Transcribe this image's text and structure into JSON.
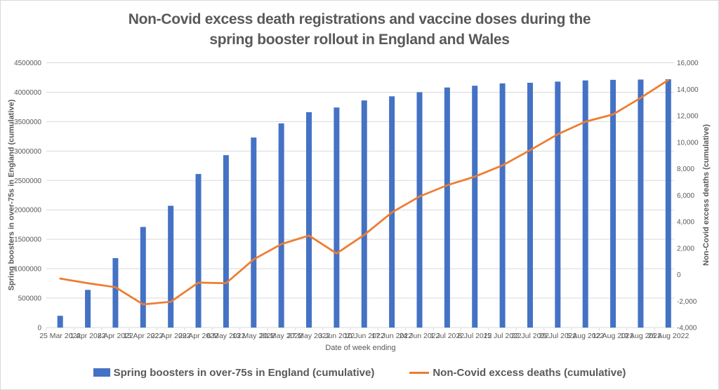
{
  "title_lines": [
    "Non-Covid excess death registrations and vaccine doses during the",
    "spring booster rollout in England and Wales"
  ],
  "colors": {
    "bar_blue": "#4472C4",
    "line_orange": "#ED7D31",
    "text_gray": "#595959",
    "gridline_gray": "#D9D9D9"
  },
  "chart_data": {
    "type": "bar",
    "note": "combo chart: bar series on left axis, line series on right axis",
    "categories": [
      "25 Mar 2022",
      "1 Apr 2022",
      "8 Apr 2022",
      "15 Apr 2022",
      "22 Apr 2022",
      "29 Apr 2022",
      "6 May 2022",
      "13 May 2022",
      "20 May 2022",
      "27 May 2022",
      "3 Jun 2022",
      "10 Jun 2022",
      "17 Jun 2022",
      "24 Jun 2022",
      "1 Jul 2022",
      "8 Jul 2022",
      "15 Jul 2022",
      "22 Jul 2022",
      "29 Jul 2022",
      "5 Aug 2022",
      "12 Aug 2022",
      "19 Aug 2022",
      "26 Aug 2022"
    ],
    "series": [
      {
        "name": "Spring boosters in over-75s in England (cumulative)",
        "type": "bar",
        "axis": "left",
        "values": [
          200000,
          640000,
          1180000,
          1710000,
          2070000,
          2610000,
          2930000,
          3230000,
          3470000,
          3660000,
          3740000,
          3860000,
          3930000,
          4000000,
          4080000,
          4110000,
          4150000,
          4160000,
          4180000,
          4200000,
          4210000,
          4215000,
          4220000
        ]
      },
      {
        "name": "Non-Covid excess deaths (cumulative)",
        "type": "line",
        "axis": "right",
        "values": [
          -300,
          -650,
          -950,
          -2250,
          -2050,
          -600,
          -650,
          1150,
          2300,
          2950,
          1600,
          3000,
          4700,
          5900,
          6750,
          7400,
          8250,
          9400,
          10600,
          11550,
          12100,
          13350,
          14700
        ]
      }
    ],
    "left_axis": {
      "title": "Spring boosters in over-75s in England (cumulative)",
      "min": 0,
      "max": 4500000,
      "step": 500000,
      "tick_labels": [
        "0",
        "500000",
        "1000000",
        "1500000",
        "2000000",
        "2500000",
        "3000000",
        "3500000",
        "4000000",
        "4500000"
      ]
    },
    "right_axis": {
      "title": "Non-Covid excess deaths (cumulative)",
      "min": -4000,
      "max": 16000,
      "step": 2000,
      "tick_labels": [
        "-4,000",
        "-2,000",
        "0",
        "2,000",
        "4,000",
        "6,000",
        "8,000",
        "10,000",
        "12,000",
        "14,000",
        "16,000"
      ]
    },
    "x_axis": {
      "title": "Date of week ending"
    },
    "legend": {
      "position": "bottom",
      "items": [
        "Spring boosters in over-75s in England (cumulative)",
        "Non-Covid excess deaths (cumulative)"
      ]
    },
    "grid": true
  }
}
